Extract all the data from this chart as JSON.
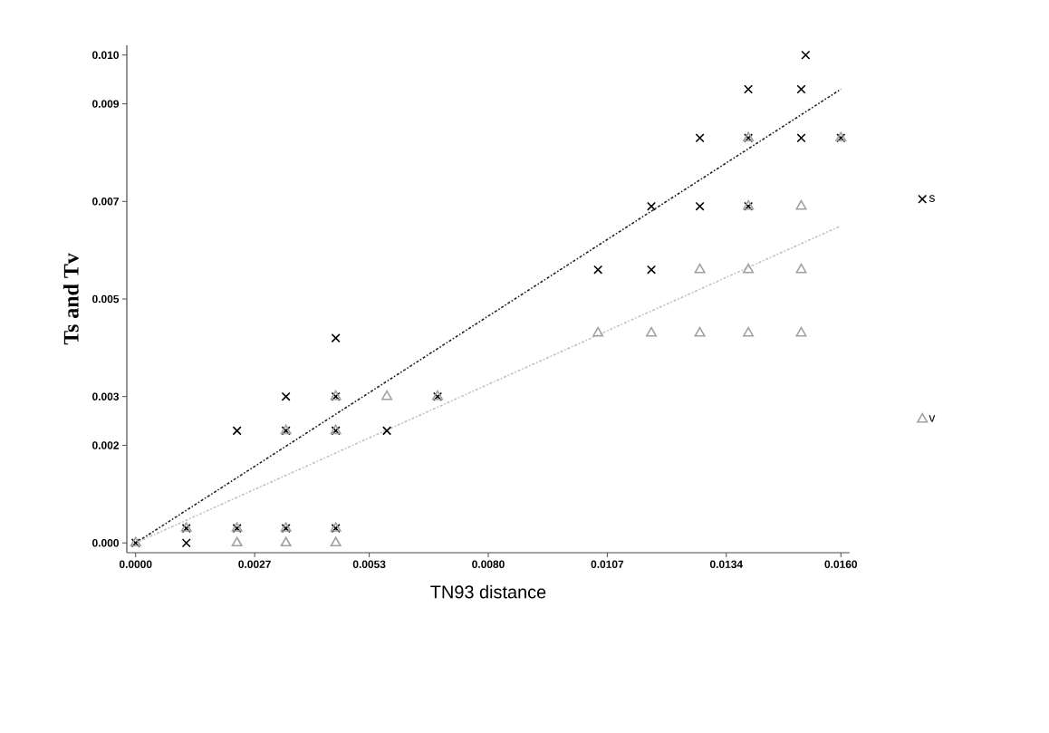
{
  "chart_data": {
    "type": "scatter",
    "xlabel": "TN93 distance",
    "ylabel": "Ts and Tv",
    "xlim": [
      -0.0002,
      0.0162
    ],
    "ylim": [
      -0.0002,
      0.0102
    ],
    "xticks": [
      {
        "value": 0,
        "label": "0.0000"
      },
      0.0027,
      0.0053,
      {
        "value": 0.008,
        "label": "0.0080"
      },
      0.0107,
      0.0134,
      {
        "value": 0.016,
        "label": "0.0160"
      }
    ],
    "yticks": [
      {
        "value": 0,
        "label": "0.000"
      },
      0.002,
      0.003,
      0.005,
      0.007,
      0.009,
      {
        "value": 0.01,
        "label": "0.010"
      }
    ],
    "legend": "right",
    "grid": false,
    "series": [
      {
        "name": "s",
        "color": "#000000",
        "marker": "cross",
        "x": [
          0,
          0.00115,
          0.00115,
          0.0023,
          0.0023,
          0.00341,
          0.00341,
          0.00341,
          0.00454,
          0.00454,
          0.00454,
          0.00454,
          0.0057,
          0.00685,
          0.01049,
          0.0117,
          0.0117,
          0.0128,
          0.0128,
          0.0139,
          0.0139,
          0.0139,
          0.0151,
          0.0152,
          0.0151,
          0.016
        ],
        "values": [
          0,
          0,
          0.0003,
          0.0023,
          0.0003,
          0.003,
          0.0023,
          0.0003,
          0.0042,
          0.003,
          0.0023,
          0.0003,
          0.0023,
          0.003,
          0.0056,
          0.0069,
          0.0056,
          0.0069,
          0.0083,
          0.0093,
          0.0083,
          0.0069,
          0.0083,
          0.01,
          0.0093,
          0.0083
        ]
      },
      {
        "name": "v",
        "color": "#a0a0a0",
        "marker": "triangle",
        "x": [
          0,
          0.0023,
          0.00341,
          0.00454,
          0.00115,
          0.0023,
          0.00341,
          0.00454,
          0.00341,
          0.00454,
          0.00454,
          0.0057,
          0.00685,
          0.01049,
          0.0117,
          0.0128,
          0.0139,
          0.0151,
          0.0128,
          0.0139,
          0.0151,
          0.0139,
          0.0151,
          0.0139,
          0.016
        ],
        "values": [
          0,
          0,
          0,
          0,
          0.0003,
          0.0003,
          0.0003,
          0.0003,
          0.0023,
          0.0023,
          0.003,
          0.003,
          0.003,
          0.0043,
          0.0043,
          0.0043,
          0.0043,
          0.0043,
          0.0056,
          0.0056,
          0.0056,
          0.0069,
          0.0069,
          0.0083,
          0.0083
        ]
      },
      {
        "type": "line",
        "color": "#222222",
        "line_style": "dashed",
        "marker": "none",
        "x": [
          0,
          0.016
        ],
        "values": [
          0,
          0.0093
        ]
      },
      {
        "type": "line",
        "color": "#c0c0c0",
        "line_style": "dashed",
        "marker": "none",
        "x": [
          0,
          0.016
        ],
        "values": [
          0,
          0.0065
        ]
      }
    ]
  }
}
